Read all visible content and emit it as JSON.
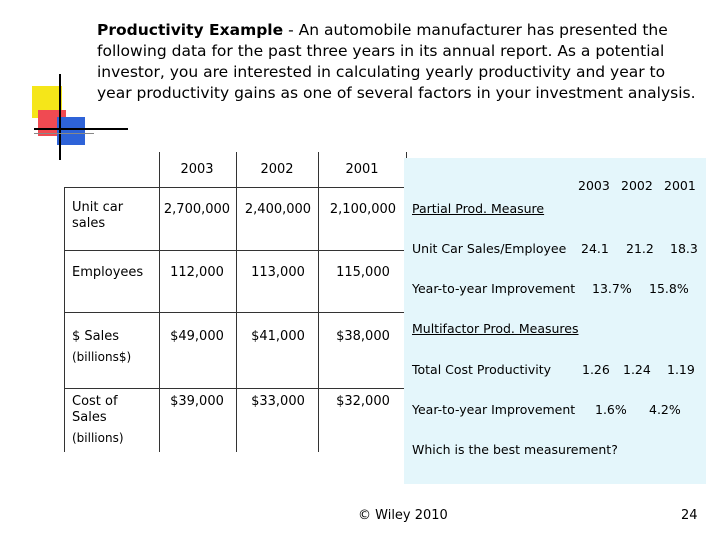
{
  "title": {
    "bold": "Productivity Example",
    "body": " - An automobile manufacturer has presented the following data for the past three years in its annual report. As a potential investor, you are interested in calculating yearly productivity and year to year productivity gains as one of several factors in your investment analysis."
  },
  "table": {
    "years": [
      "2003",
      "2002",
      "2001"
    ],
    "rows": [
      {
        "label": "Unit car sales",
        "sub": "",
        "values": [
          "2,700,000",
          "2,400,000",
          "2,100,000"
        ]
      },
      {
        "label": "Employees",
        "sub": "",
        "values": [
          "112,000",
          "113,000",
          "115,000"
        ]
      },
      {
        "label": "$ Sales",
        "sub": "(billions$)",
        "values": [
          "$49,000",
          "$41,000",
          "$38,000"
        ]
      },
      {
        "label": "Cost of Sales",
        "sub": "(billions)",
        "values": [
          "$39,000",
          "$33,000",
          "$32,000"
        ]
      }
    ]
  },
  "panel": {
    "years": [
      "2003",
      "2002",
      "2001"
    ],
    "partial_heading": "Partial Prod. Measure",
    "unit_car_label": "Unit Car Sales/Employee",
    "unit_car_values": [
      "24.1",
      "21.2",
      "18.3"
    ],
    "yoy_label_1": "Year-to-year Improvement",
    "yoy_values_1": [
      "13.7%",
      "15.8%"
    ],
    "multifactor_heading": "Multifactor Prod. Measures",
    "total_cost_label": "Total Cost Productivity",
    "total_cost_values": [
      "1.26",
      "1.24",
      "1.19"
    ],
    "yoy_label_2": "Year-to-year Improvement",
    "yoy_values_2": [
      "1.6%",
      "4.2%"
    ],
    "question": "Which is the best measurement?"
  },
  "footer": {
    "copyright": "© Wiley 2010",
    "page_number": "24"
  },
  "colors": {
    "panel_bg": "#e4f6fb",
    "deco_yellow": "#f5e619",
    "deco_red": "#f04a52",
    "deco_blue": "#2e63d8"
  }
}
